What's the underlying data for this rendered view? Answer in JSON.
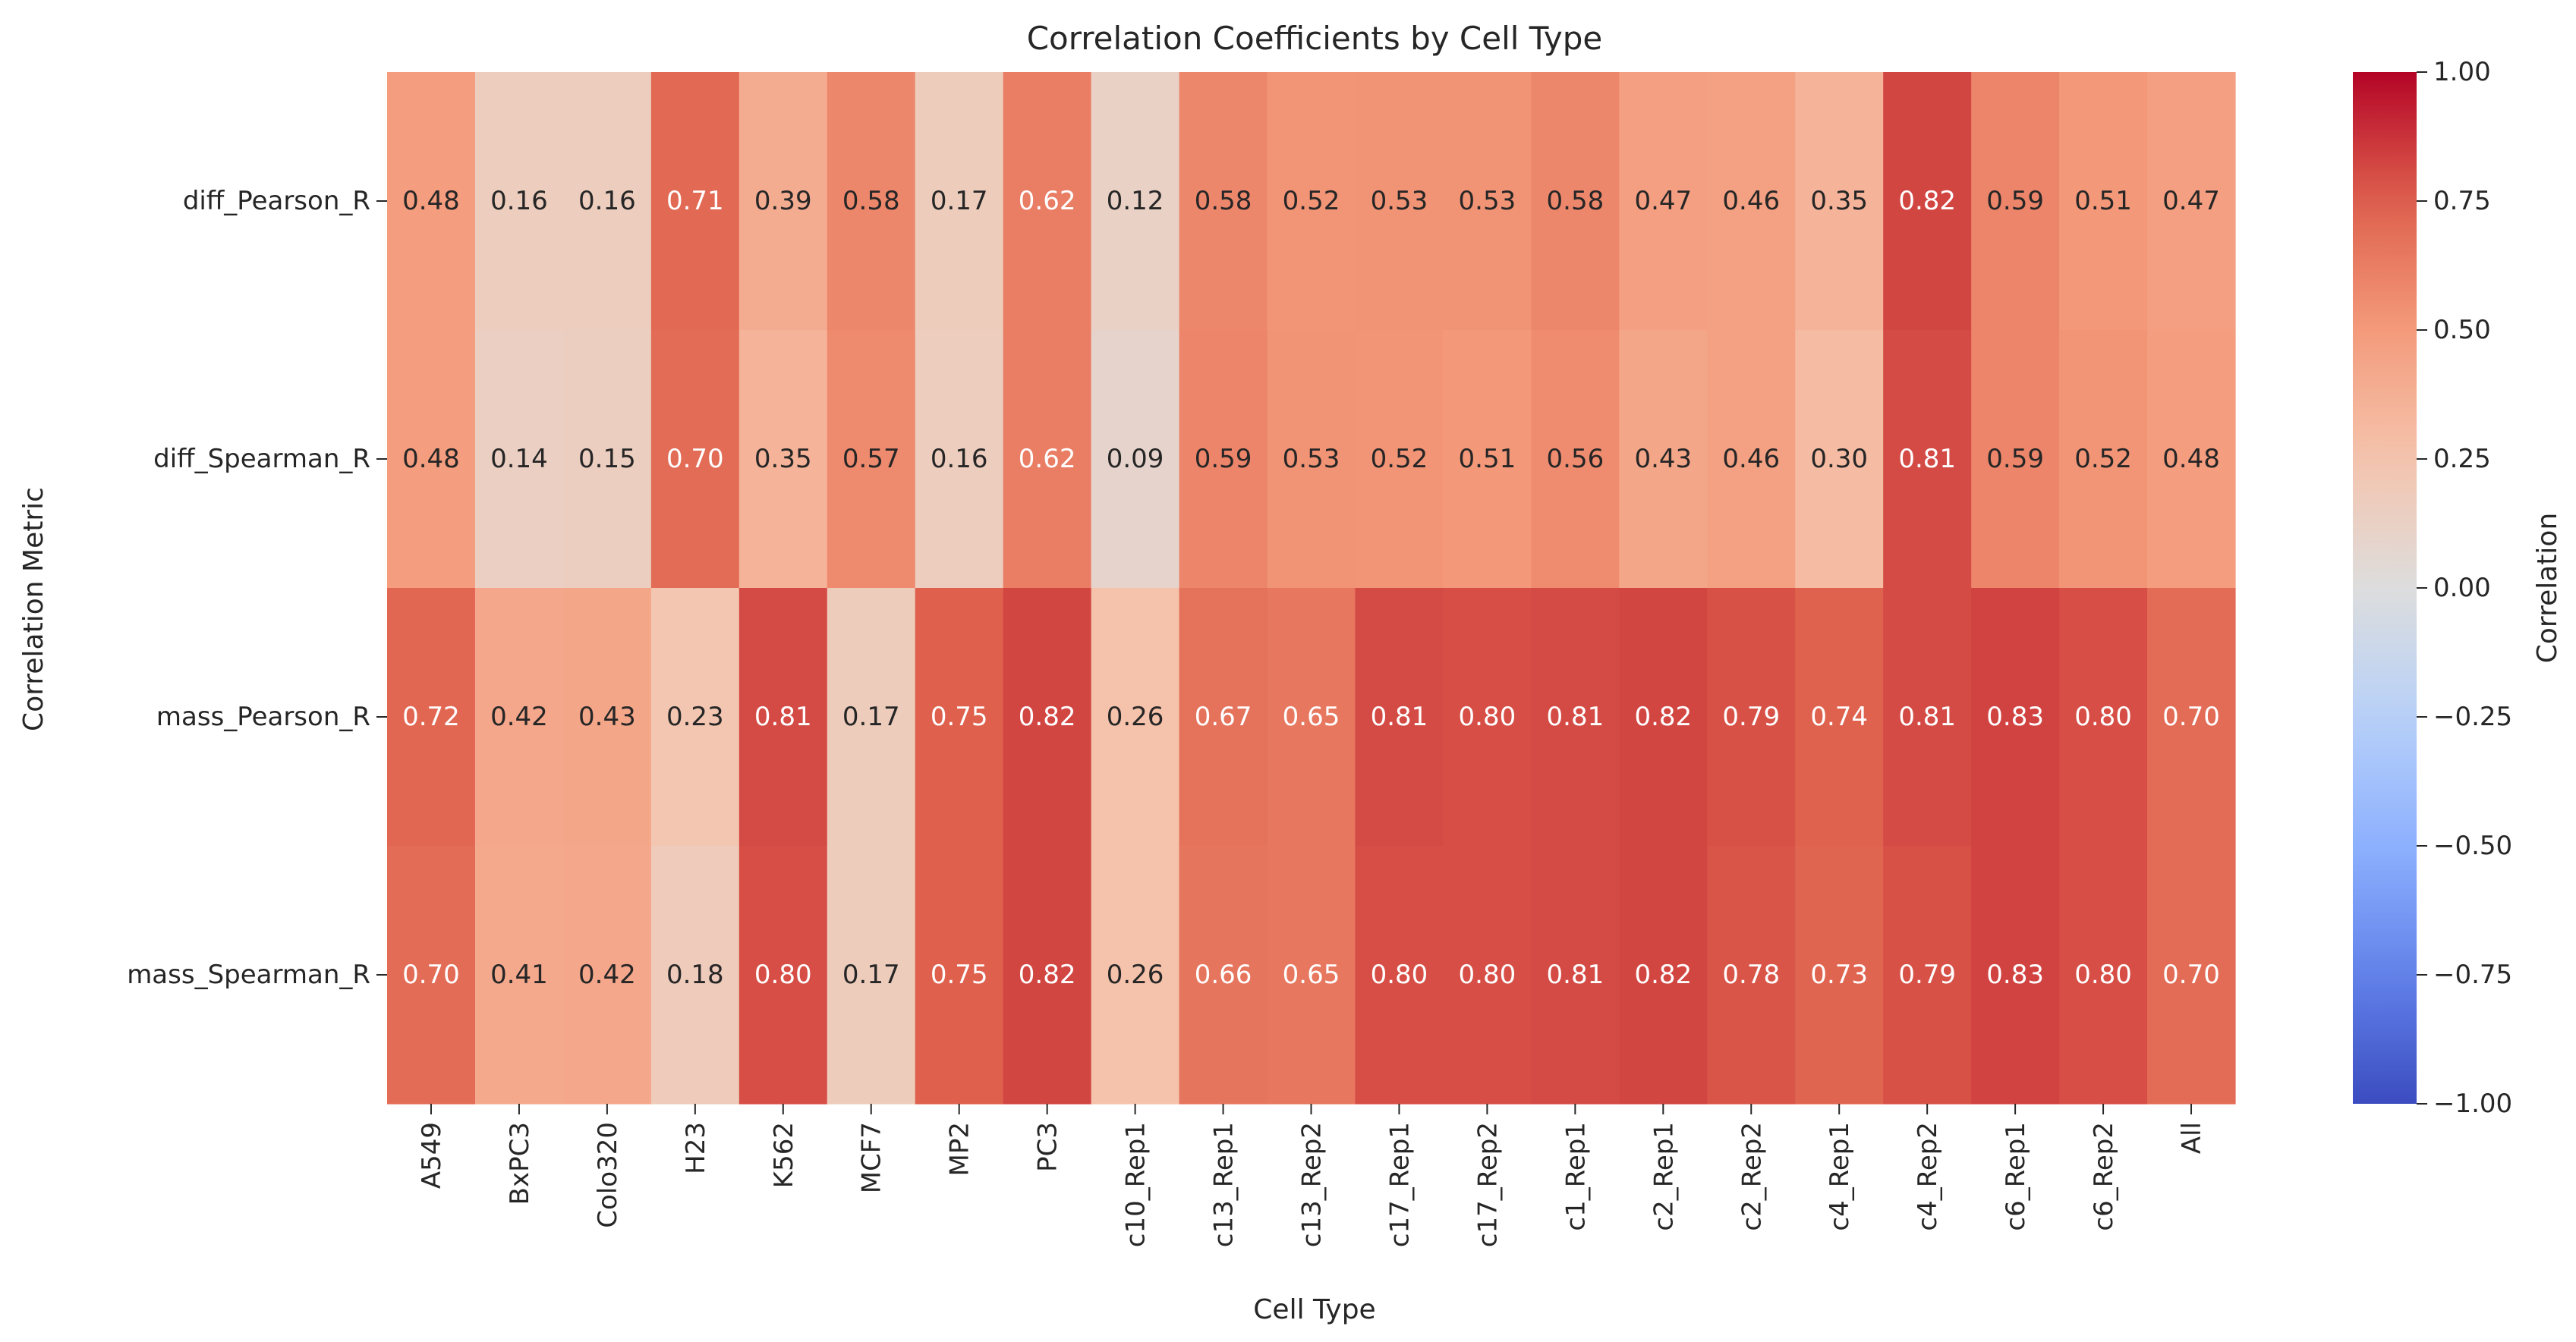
{
  "chart_data": {
    "type": "heatmap",
    "title": "Correlation Coefficients by Cell Type",
    "xlabel": "Cell Type",
    "ylabel": "Correlation Metric",
    "colorbar_label": "Correlation",
    "colormap": "coolwarm",
    "vmin": -1.0,
    "vmax": 1.0,
    "colorbar_ticks": [
      "1.00",
      "0.75",
      "0.50",
      "0.25",
      "0.00",
      "−0.25",
      "−0.50",
      "−0.75",
      "−1.00"
    ],
    "colorbar_tick_values": [
      1.0,
      0.75,
      0.5,
      0.25,
      0.0,
      -0.25,
      -0.5,
      -0.75,
      -1.0
    ],
    "columns": [
      "A549",
      "BxPC3",
      "Colo320",
      "H23",
      "K562",
      "MCF7",
      "MP2",
      "PC3",
      "c10_Rep1",
      "c13_Rep1",
      "c13_Rep2",
      "c17_Rep1",
      "c17_Rep2",
      "c1_Rep1",
      "c2_Rep1",
      "c2_Rep2",
      "c4_Rep1",
      "c4_Rep2",
      "c6_Rep1",
      "c6_Rep2",
      "All"
    ],
    "rows": [
      "diff_Pearson_R",
      "diff_Spearman_R",
      "mass_Pearson_R",
      "mass_Spearman_R"
    ],
    "values": [
      [
        0.48,
        0.16,
        0.16,
        0.71,
        0.39,
        0.58,
        0.17,
        0.62,
        0.12,
        0.58,
        0.52,
        0.53,
        0.53,
        0.58,
        0.47,
        0.46,
        0.35,
        0.82,
        0.59,
        0.51,
        0.47
      ],
      [
        0.48,
        0.14,
        0.15,
        0.7,
        0.35,
        0.57,
        0.16,
        0.62,
        0.09,
        0.59,
        0.53,
        0.52,
        0.51,
        0.56,
        0.43,
        0.46,
        0.3,
        0.81,
        0.59,
        0.52,
        0.48
      ],
      [
        0.72,
        0.42,
        0.43,
        0.23,
        0.81,
        0.17,
        0.75,
        0.82,
        0.26,
        0.67,
        0.65,
        0.81,
        0.8,
        0.81,
        0.82,
        0.79,
        0.74,
        0.81,
        0.83,
        0.8,
        0.7
      ],
      [
        0.7,
        0.41,
        0.42,
        0.18,
        0.8,
        0.17,
        0.75,
        0.82,
        0.26,
        0.66,
        0.65,
        0.8,
        0.8,
        0.81,
        0.82,
        0.78,
        0.73,
        0.79,
        0.83,
        0.8,
        0.7
      ]
    ],
    "grid": false,
    "legend": "colorbar-right"
  }
}
